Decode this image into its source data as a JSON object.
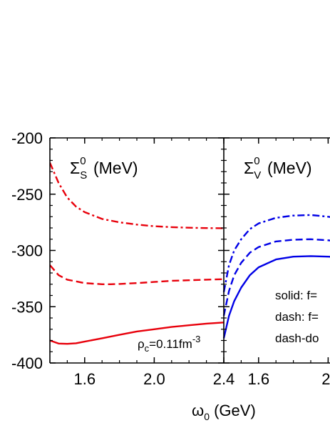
{
  "chart_data": {
    "type": "line",
    "title": "",
    "xlabel": "ω₀ (GeV)",
    "ylabel": "",
    "y_ticks": [
      "-200",
      "-250",
      "-300",
      "-350",
      "-400"
    ],
    "grid": false,
    "legend_position": "inside right panel, lower right",
    "legend_entries": [
      "solid: f=",
      "dash: f=",
      "dash-do"
    ],
    "annotation": "ρc=0.11fm⁻³",
    "panels": [
      {
        "label": "ΣS0 (MeV)",
        "xlim": [
          1.4,
          2.4
        ],
        "ylim": [
          -400,
          -200
        ],
        "x_ticks": [
          "1.6",
          "2.0",
          "2.4"
        ],
        "color": "#e8000b",
        "series": [
          {
            "style": "solid",
            "x": [
              1.4,
              1.45,
              1.5,
              1.55,
              1.6,
              1.7,
              1.8,
              1.9,
              2.0,
              2.1,
              2.2,
              2.3,
              2.4
            ],
            "y": [
              -380,
              -382.7,
              -383,
              -382.5,
              -381,
              -378,
              -375,
              -372,
              -370,
              -368,
              -366.5,
              -365,
              -364
            ]
          },
          {
            "style": "dash",
            "x": [
              1.4,
              1.45,
              1.5,
              1.6,
              1.7,
              1.75,
              1.8,
              1.9,
              2.0,
              2.1,
              2.2,
              2.3,
              2.4
            ],
            "y": [
              -313,
              -322,
              -326,
              -329,
              -330,
              -330,
              -329.8,
              -329,
              -328,
              -327,
              -326.5,
              -326,
              -325.5
            ]
          },
          {
            "style": "dash-dot",
            "x": [
              1.4,
              1.45,
              1.5,
              1.55,
              1.6,
              1.7,
              1.8,
              1.9,
              2.0,
              2.1,
              2.2,
              2.3,
              2.4
            ],
            "y": [
              -222,
              -240,
              -253,
              -261,
              -266,
              -272,
              -275,
              -277,
              -278.5,
              -279.3,
              -279.8,
              -280.1,
              -280.3
            ]
          }
        ]
      },
      {
        "label": "ΣV0 (MeV)",
        "xlim": [
          1.4,
          2.4
        ],
        "ylim": [
          -400,
          -200
        ],
        "x_ticks": [
          "1.6",
          "2."
        ],
        "color": "#0000e6",
        "series": [
          {
            "style": "solid",
            "x": [
              1.4,
              1.43,
              1.46,
              1.5,
              1.55,
              1.6,
              1.7,
              1.8,
              1.9,
              2.0,
              2.1
            ],
            "y": [
              -378,
              -358,
              -345,
              -333,
              -322,
              -315,
              -308,
              -305.5,
              -305,
              -305.5,
              -306
            ]
          },
          {
            "style": "dash",
            "x": [
              1.4,
              1.43,
              1.46,
              1.5,
              1.55,
              1.6,
              1.7,
              1.8,
              1.9,
              2.0,
              2.1
            ],
            "y": [
              -358,
              -336,
              -322,
              -311,
              -302,
              -297,
              -292,
              -290.5,
              -290,
              -291,
              -292.5
            ]
          },
          {
            "style": "dash-dot",
            "x": [
              1.4,
              1.43,
              1.46,
              1.5,
              1.55,
              1.6,
              1.7,
              1.8,
              1.9,
              2.0,
              2.1
            ],
            "y": [
              -337,
              -313,
              -300,
              -290,
              -281,
              -276,
              -271,
              -269,
              -268.5,
              -270,
              -272.5
            ]
          }
        ]
      }
    ]
  }
}
